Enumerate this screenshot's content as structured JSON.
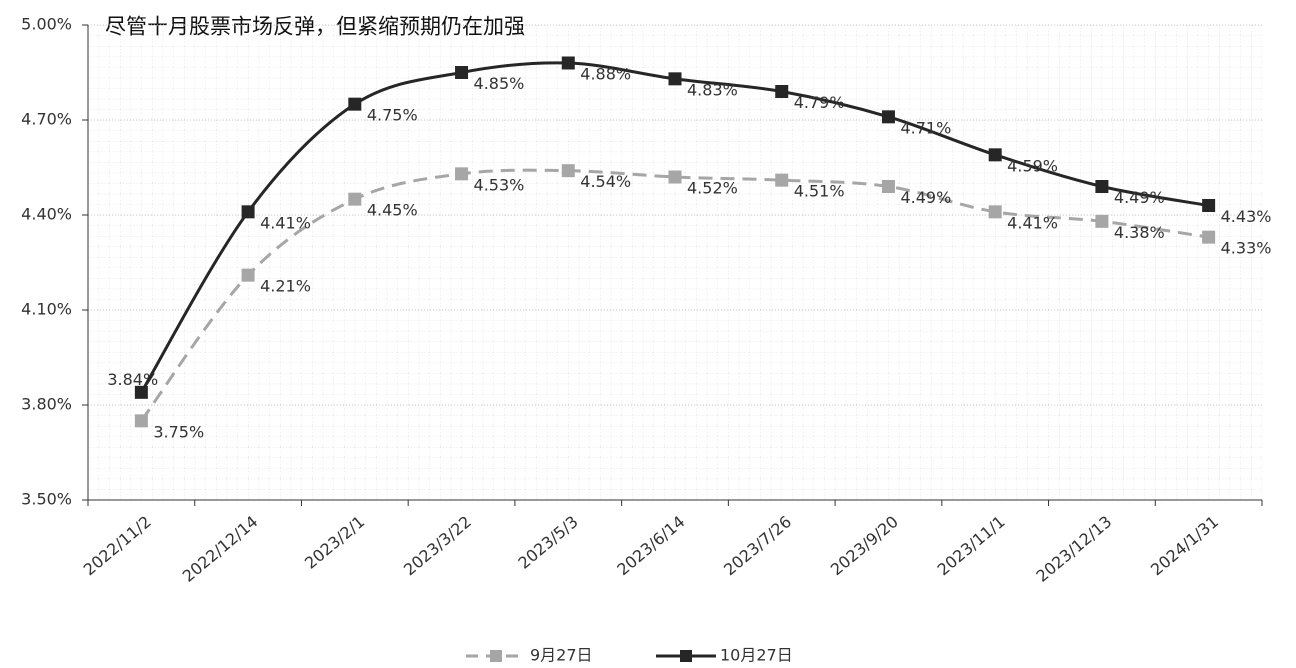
{
  "chart_data": {
    "type": "line",
    "title": "尽管十月股票市场反弹，但紧缩预期仍在加强",
    "categories": [
      "2022/11/2",
      "2022/12/14",
      "2023/2/1",
      "2023/3/22",
      "2023/5/3",
      "2023/6/14",
      "2023/7/26",
      "2023/9/20",
      "2023/11/1",
      "2023/12/13",
      "2024/1/31"
    ],
    "series": [
      {
        "name": "9月27日",
        "color": "#a6a6a6",
        "line_style": "dashed",
        "values": [
          3.75,
          4.21,
          4.45,
          4.53,
          4.54,
          4.52,
          4.51,
          4.49,
          4.41,
          4.38,
          4.33
        ],
        "value_labels": [
          "3.75%",
          "4.21%",
          "4.45%",
          "4.53%",
          "4.54%",
          "4.52%",
          "4.51%",
          "4.49%",
          "4.41%",
          "4.38%",
          "4.33%"
        ]
      },
      {
        "name": "10月27日",
        "color": "#262626",
        "line_style": "solid",
        "values": [
          3.84,
          4.41,
          4.75,
          4.85,
          4.88,
          4.83,
          4.79,
          4.71,
          4.59,
          4.49,
          4.43
        ],
        "value_labels": [
          "3.84%",
          "4.41%",
          "4.75%",
          "4.85%",
          "4.88%",
          "4.83%",
          "4.79%",
          "4.71%",
          "4.59%",
          "4.49%",
          "4.43%"
        ]
      }
    ],
    "ylim": [
      3.5,
      5.0
    ],
    "yticks": [
      {
        "value": 3.5,
        "label": "3.50%"
      },
      {
        "value": 3.8,
        "label": "3.80%"
      },
      {
        "value": 4.1,
        "label": "4.10%"
      },
      {
        "value": 4.4,
        "label": "4.40%"
      },
      {
        "value": 4.7,
        "label": "4.70%"
      },
      {
        "value": 5.0,
        "label": "5.00%"
      }
    ],
    "grid": true,
    "legend": "bottom"
  }
}
